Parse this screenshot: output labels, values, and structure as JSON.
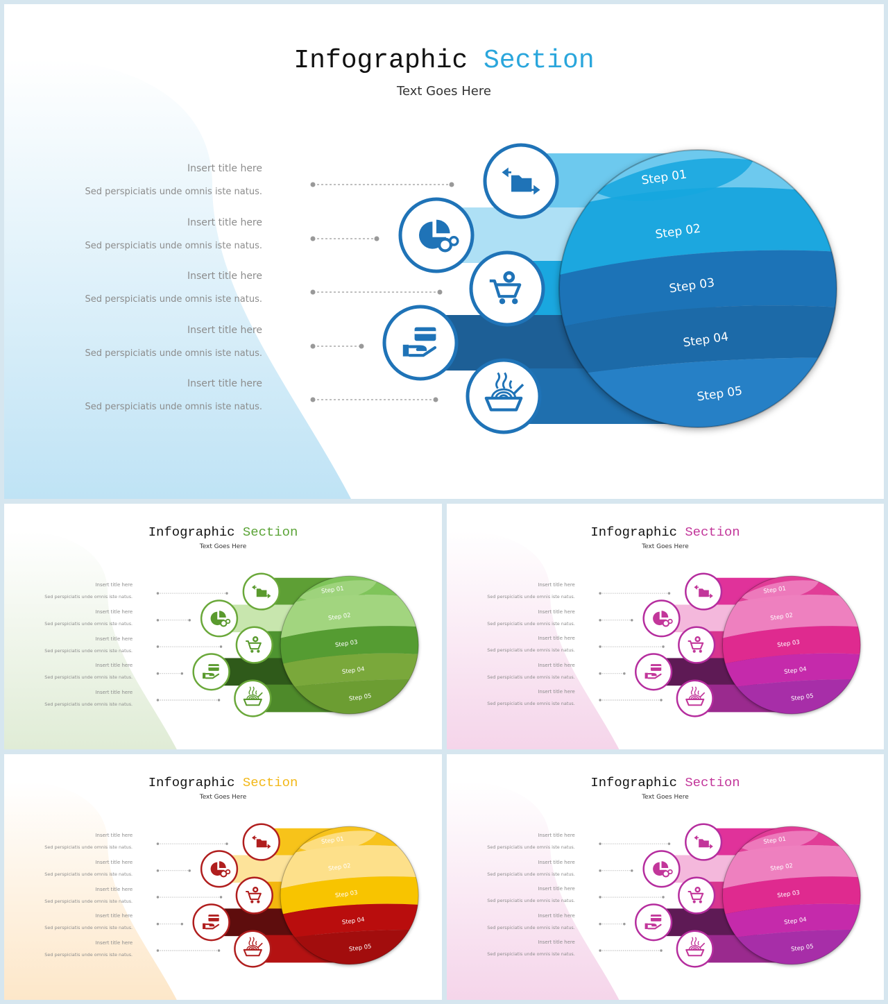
{
  "slides": [
    {
      "title_main": "Infographic",
      "title_accent": "Section",
      "subtitle": "Text Goes Here",
      "accent_color": "#2aa6dc",
      "circle_border": "#1f73b7",
      "icon_color": "#1f73b7",
      "step_colors": [
        "#6dc9ee",
        "#aee0f5",
        "#1aa7df",
        "#1d5f96",
        "#1f6fae"
      ],
      "sphere_colors": [
        "#6dc9ee",
        "#1aa7df",
        "#1f73b7",
        "#1f6aa8",
        "#2880c6"
      ],
      "bg_blob": "#bfe3f5",
      "items": [
        {
          "title": "Insert title here",
          "desc": "Sed perspiciatis unde omnis iste natus.",
          "step": "Step 01",
          "icon": "folder-transfer-icon"
        },
        {
          "title": "Insert title here",
          "desc": "Sed perspiciatis unde omnis iste natus.",
          "step": "Step 02",
          "icon": "pie-chart-gear-icon"
        },
        {
          "title": "Insert title here",
          "desc": "Sed perspiciatis unde omnis iste natus.",
          "step": "Step 03",
          "icon": "cart-gear-icon"
        },
        {
          "title": "Insert title here",
          "desc": "Sed perspiciatis unde omnis iste natus.",
          "step": "Step 04",
          "icon": "card-hand-icon"
        },
        {
          "title": "Insert title here",
          "desc": "Sed perspiciatis unde omnis iste natus.",
          "step": "Step 05",
          "icon": "noodle-bowl-icon"
        }
      ]
    },
    {
      "title_main": "Infographic",
      "title_accent": "Section",
      "subtitle": "Text Goes Here",
      "accent_color": "#5aa336",
      "circle_border": "#6aa83a",
      "icon_color": "#5a9a2e",
      "step_colors": [
        "#5e9f35",
        "#c8e6ae",
        "#4e9430",
        "#2f5a1a",
        "#4e8a2a"
      ],
      "sphere_colors": [
        "#7fc45a",
        "#a2d57f",
        "#559c33",
        "#7aa83a",
        "#6c9d33"
      ],
      "bg_blob": "#e0ecd6",
      "items": [
        {
          "title": "Insert title here",
          "desc": "Sed perspiciatis unde omnis iste natus.",
          "step": "Step 01",
          "icon": "folder-transfer-icon"
        },
        {
          "title": "Insert title here",
          "desc": "Sed perspiciatis unde omnis iste natus.",
          "step": "Step 02",
          "icon": "pie-chart-gear-icon"
        },
        {
          "title": "Insert title here",
          "desc": "Sed perspiciatis unde omnis iste natus.",
          "step": "Step 03",
          "icon": "cart-gear-icon"
        },
        {
          "title": "Insert title here",
          "desc": "Sed perspiciatis unde omnis iste natus.",
          "step": "Step 04",
          "icon": "card-hand-icon"
        },
        {
          "title": "Insert title here",
          "desc": "Sed perspiciatis unde omnis iste natus.",
          "step": "Step 05",
          "icon": "noodle-bowl-icon"
        }
      ]
    },
    {
      "title_main": "Infographic",
      "title_accent": "Section",
      "subtitle": "Text Goes Here",
      "accent_color": "#c2369a",
      "circle_border": "#b52d9e",
      "icon_color": "#c2369a",
      "step_colors": [
        "#e0329a",
        "#f4b8dc",
        "#d8358f",
        "#5e1a55",
        "#9a2a8e"
      ],
      "sphere_colors": [
        "#e13c97",
        "#ee80bf",
        "#df2b8f",
        "#c52cab",
        "#a72da8"
      ],
      "bg_blob": "#f5d5ea",
      "items": [
        {
          "title": "Insert title here",
          "desc": "Sed perspiciatis unde omnis iste natus.",
          "step": "Step 01",
          "icon": "folder-transfer-icon"
        },
        {
          "title": "Insert title here",
          "desc": "Sed perspiciatis unde omnis iste natus.",
          "step": "Step 02",
          "icon": "pie-chart-gear-icon"
        },
        {
          "title": "Insert title here",
          "desc": "Sed perspiciatis unde omnis iste natus.",
          "step": "Step 03",
          "icon": "cart-gear-icon"
        },
        {
          "title": "Insert title here",
          "desc": "Sed perspiciatis unde omnis iste natus.",
          "step": "Step 04",
          "icon": "card-hand-icon"
        },
        {
          "title": "Insert title here",
          "desc": "Sed perspiciatis unde omnis iste natus.",
          "step": "Step 05",
          "icon": "noodle-bowl-icon"
        }
      ]
    },
    {
      "title_main": "Infographic",
      "title_accent": "Section",
      "subtitle": "Text Goes Here",
      "accent_color": "#f2b716",
      "circle_border": "#b01e1e",
      "icon_color": "#b01e1e",
      "step_colors": [
        "#f7c31a",
        "#fde39a",
        "#f3b70e",
        "#5e0d0d",
        "#b41212"
      ],
      "sphere_colors": [
        "#f7c31a",
        "#fde08a",
        "#f8c400",
        "#b90f0f",
        "#a20c0c"
      ],
      "bg_blob": "#fde7c9",
      "items": [
        {
          "title": "Insert title here",
          "desc": "Sed perspiciatis unde omnis iste natus.",
          "step": "Step 01",
          "icon": "folder-transfer-icon"
        },
        {
          "title": "Insert title here",
          "desc": "Sed perspiciatis unde omnis iste natus.",
          "step": "Step 02",
          "icon": "pie-chart-gear-icon"
        },
        {
          "title": "Insert title here",
          "desc": "Sed perspiciatis unde omnis iste natus.",
          "step": "Step 03",
          "icon": "cart-gear-icon"
        },
        {
          "title": "Insert title here",
          "desc": "Sed perspiciatis unde omnis iste natus.",
          "step": "Step 04",
          "icon": "card-hand-icon"
        },
        {
          "title": "Insert title here",
          "desc": "Sed perspiciatis unde omnis iste natus.",
          "step": "Step 05",
          "icon": "noodle-bowl-icon"
        }
      ]
    },
    {
      "title_main": "Infographic",
      "title_accent": "Section",
      "subtitle": "Text Goes Here",
      "accent_color": "#c2369a",
      "circle_border": "#b52d9e",
      "icon_color": "#c2369a",
      "step_colors": [
        "#e0329a",
        "#f4b8dc",
        "#d8358f",
        "#5e1a55",
        "#9a2a8e"
      ],
      "sphere_colors": [
        "#e13c97",
        "#ee80bf",
        "#df2b8f",
        "#c52cab",
        "#a72da8"
      ],
      "bg_blob": "#f5d5ea",
      "items": [
        {
          "title": "Insert title here",
          "desc": "Sed perspiciatis unde omnis iste natus.",
          "step": "Step 01",
          "icon": "folder-transfer-icon"
        },
        {
          "title": "Insert title here",
          "desc": "Sed perspiciatis unde omnis iste natus.",
          "step": "Step 02",
          "icon": "pie-chart-gear-icon"
        },
        {
          "title": "Insert title here",
          "desc": "Sed perspiciatis unde omnis iste natus.",
          "step": "Step 03",
          "icon": "cart-gear-icon"
        },
        {
          "title": "Insert title here",
          "desc": "Sed perspiciatis unde omnis iste natus.",
          "step": "Step 04",
          "icon": "card-hand-icon"
        },
        {
          "title": "Insert title here",
          "desc": "Sed perspiciatis unde omnis iste natus.",
          "step": "Step 05",
          "icon": "noodle-bowl-icon"
        }
      ]
    }
  ]
}
